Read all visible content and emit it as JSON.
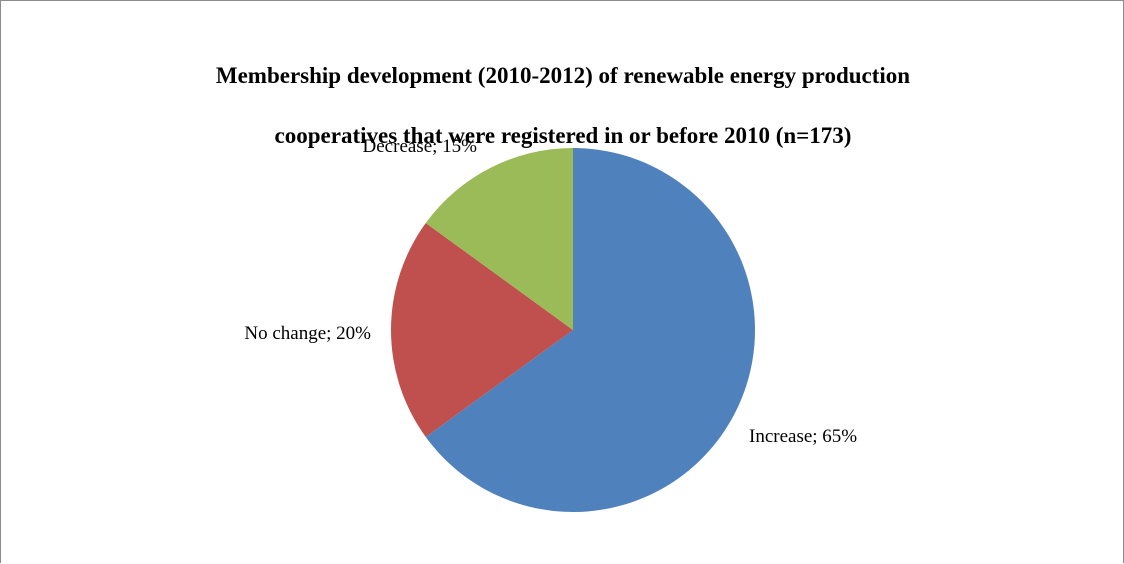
{
  "chart_data": {
    "type": "pie",
    "title_lines": [
      "Membership development (2010-2012) of renewable energy  production",
      "cooperatives that were registered in or before 2010  (n=173)"
    ],
    "slices": [
      {
        "label": "Increase",
        "value": 65,
        "display": "Increase; 65%",
        "color": "#4F81BD"
      },
      {
        "label": "No change",
        "value": 20,
        "display": "No change; 20%",
        "color": "#C0504D"
      },
      {
        "label": "Decrease",
        "value": 15,
        "display": "Decrease; 15%",
        "color": "#9BBB59"
      }
    ],
    "legend": "none"
  }
}
